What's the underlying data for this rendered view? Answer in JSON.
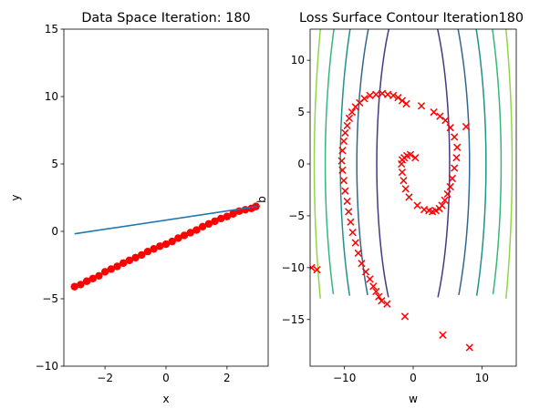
{
  "chart_data": [
    {
      "type": "line",
      "title": "Data Space Iteration: 180",
      "xlabel": "x",
      "ylabel": "y",
      "xlim": [
        -3.35,
        3.35
      ],
      "ylim": [
        -10,
        15
      ],
      "xticks": [
        -2,
        0,
        2
      ],
      "xtick_labels": [
        "−2",
        "0",
        "2"
      ],
      "yticks": [
        -10,
        -5,
        0,
        5,
        10,
        15
      ],
      "ytick_labels": [
        "−10",
        "−5",
        "0",
        "5",
        "10",
        "15"
      ],
      "series": [
        {
          "name": "data",
          "kind": "scatter",
          "color": "#ff0000",
          "x": [
            -3.0,
            -2.8,
            -2.6,
            -2.4,
            -2.2,
            -2.0,
            -1.8,
            -1.6,
            -1.4,
            -1.2,
            -1.0,
            -0.8,
            -0.6,
            -0.4,
            -0.2,
            0.0,
            0.2,
            0.4,
            0.6,
            0.8,
            1.0,
            1.2,
            1.4,
            1.6,
            1.8,
            2.0,
            2.2,
            2.4,
            2.6,
            2.8,
            2.95
          ],
          "y": [
            -4.1,
            -3.95,
            -3.7,
            -3.5,
            -3.3,
            -3.0,
            -2.8,
            -2.6,
            -2.35,
            -2.15,
            -1.95,
            -1.75,
            -1.5,
            -1.3,
            -1.1,
            -0.95,
            -0.75,
            -0.5,
            -0.3,
            -0.1,
            0.1,
            0.35,
            0.55,
            0.75,
            0.95,
            1.1,
            1.3,
            1.5,
            1.6,
            1.7,
            1.85
          ]
        },
        {
          "name": "fit",
          "kind": "line",
          "color": "#1f77b4",
          "x": [
            -3.0,
            3.0
          ],
          "y": [
            -0.18,
            1.85
          ]
        }
      ]
    },
    {
      "type": "contour",
      "title": "Loss Surface Contour Iteration180",
      "xlabel": "w",
      "ylabel": "b",
      "xlim": [
        -15,
        15
      ],
      "ylim": [
        -19.5,
        13
      ],
      "xticks": [
        -10,
        0,
        10
      ],
      "xtick_labels": [
        "−10",
        "0",
        "10"
      ],
      "yticks": [
        -15,
        -10,
        -5,
        0,
        5,
        10
      ],
      "ytick_labels": [
        "−15",
        "−10",
        "−5",
        "0",
        "5",
        "10"
      ],
      "contour_center": [
        0,
        0
      ],
      "contour_levels": [
        {
          "a": 5.3,
          "b": 17.5,
          "color": "#443983"
        },
        {
          "a": 8.2,
          "b": 21.5,
          "color": "#31688e"
        },
        {
          "a": 10.6,
          "b": 26.0,
          "color": "#21918c"
        },
        {
          "a": 12.8,
          "b": 30.0,
          "color": "#35b779"
        },
        {
          "a": 14.4,
          "b": 37.5,
          "color": "#90d743"
        }
      ],
      "parameter_path": {
        "color": "#ff0000",
        "w": [
          8.2,
          4.3,
          -1.2,
          -3.8,
          -4.6,
          -5.0,
          -5.4,
          -5.8,
          -6.3,
          -6.9,
          -7.5,
          -8.0,
          -8.4,
          -8.8,
          -9.1,
          -9.4,
          -9.6,
          -9.9,
          -10.1,
          -10.3,
          -10.4,
          -10.3,
          -10.1,
          -9.9,
          -9.6,
          -9.3,
          -8.9,
          -8.4,
          -7.8,
          -7.1,
          -6.3,
          -5.4,
          -4.5,
          -3.7,
          -2.9,
          -2.2,
          -1.6,
          -1.0,
          1.2,
          3.0,
          3.9,
          4.7,
          5.4,
          6.0,
          6.4,
          6.3,
          6.0,
          5.7,
          5.4,
          5.0,
          4.6,
          4.2,
          3.8,
          3.3,
          2.8,
          2.3,
          1.6,
          0.6,
          -0.6,
          -1.1,
          -1.4,
          -1.6,
          -1.7,
          -1.6,
          -1.3,
          -0.9,
          -0.4,
          0.3,
          -14.8,
          -14.0,
          7.7
        ],
        "b": [
          -17.7,
          -16.5,
          -14.7,
          -13.5,
          -13.2,
          -12.8,
          -12.3,
          -11.8,
          -11.1,
          -10.4,
          -9.6,
          -8.6,
          -7.6,
          -6.6,
          -5.6,
          -4.6,
          -3.6,
          -2.6,
          -1.6,
          -0.6,
          0.3,
          1.3,
          2.2,
          3.0,
          3.7,
          4.4,
          5.0,
          5.5,
          5.9,
          6.3,
          6.6,
          6.7,
          6.8,
          6.7,
          6.6,
          6.4,
          6.1,
          5.8,
          5.6,
          5.0,
          4.6,
          4.2,
          3.5,
          2.6,
          1.6,
          0.6,
          -0.4,
          -1.4,
          -2.2,
          -2.9,
          -3.5,
          -4.0,
          -4.3,
          -4.5,
          -4.6,
          -4.5,
          -4.4,
          -4.0,
          -3.2,
          -2.4,
          -1.6,
          -0.8,
          0.0,
          0.4,
          0.6,
          0.8,
          0.9,
          0.6,
          -10.0,
          -10.2,
          3.6
        ]
      }
    }
  ]
}
